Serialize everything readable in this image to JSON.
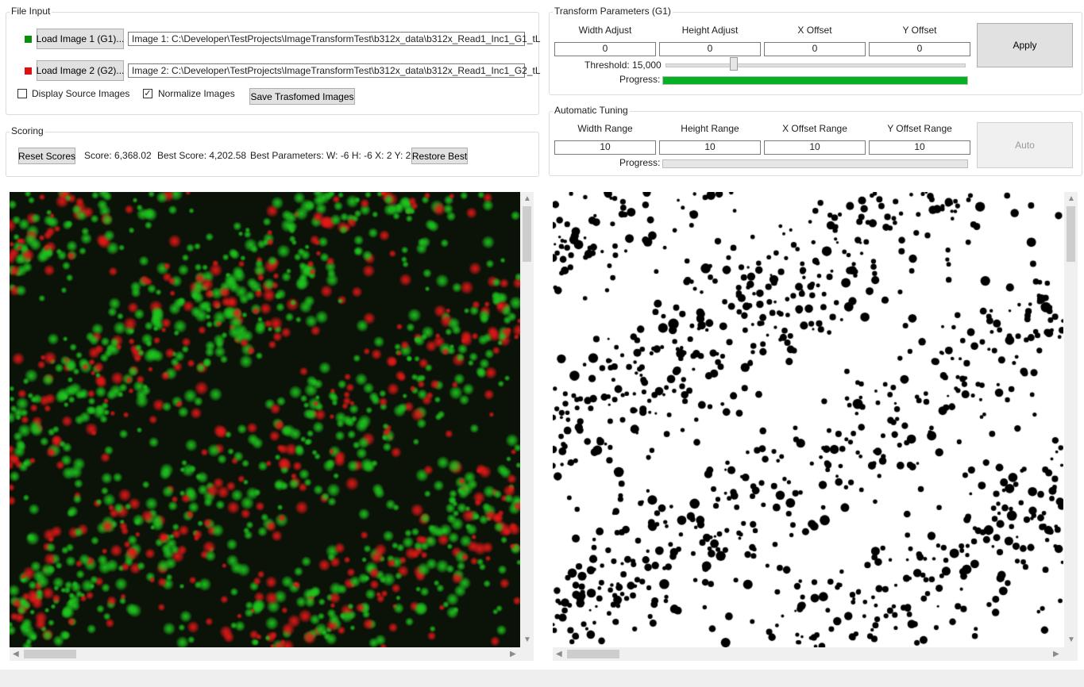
{
  "file_input": {
    "title": "File Input",
    "load1_label": "Load Image 1 (G1)...",
    "load1_color": "#0a8f0a",
    "path1": "Image 1: C:\\Developer\\TestProjects\\ImageTransformTest\\b312x_data\\b312x_Read1_Inc1_G1_tL",
    "load2_label": "Load Image 2 (G2)...",
    "load2_color": "#e01010",
    "path2": "Image 2: C:\\Developer\\TestProjects\\ImageTransformTest\\b312x_data\\b312x_Read1_Inc1_G2_tL",
    "display_source_label": "Display Source Images",
    "display_source_checked": false,
    "normalize_label": "Normalize Images",
    "normalize_checked": true,
    "save_label": "Save Trasfomed Images"
  },
  "scoring": {
    "title": "Scoring",
    "reset_label": "Reset Scores",
    "score_text": "Score: 6,368.02",
    "best_score_text": "Best Score: 4,202.58",
    "best_params_text": "Best Parameters: W: -6 H: -6 X: 2 Y: 2",
    "restore_label": "Restore Best"
  },
  "transform": {
    "title": "Transform Parameters (G1)",
    "columns": [
      "Width Adjust",
      "Height Adjust",
      "X Offset",
      "Y Offset"
    ],
    "values": [
      "0",
      "0",
      "0",
      "0"
    ],
    "threshold_label": "Threshold: 15,000",
    "threshold_value": 15000,
    "threshold_fraction": 0.23,
    "progress_label": "Progress:",
    "progress_value": 1.0,
    "apply_label": "Apply"
  },
  "auto": {
    "title": "Automatic Tuning",
    "columns": [
      "Width Range",
      "Height Range",
      "X Offset Range",
      "Y Offset Range"
    ],
    "values": [
      "10",
      "10",
      "10",
      "10"
    ],
    "progress_label": "Progress:",
    "progress_value": 0.0,
    "auto_label": "Auto"
  },
  "colors": {
    "green": "#1fc81f",
    "red": "#e81818",
    "progress_green": "#06b025"
  },
  "icons": {
    "scroll_up": "▲",
    "scroll_down": "▼",
    "scroll_left": "◀",
    "scroll_right": "▶"
  }
}
